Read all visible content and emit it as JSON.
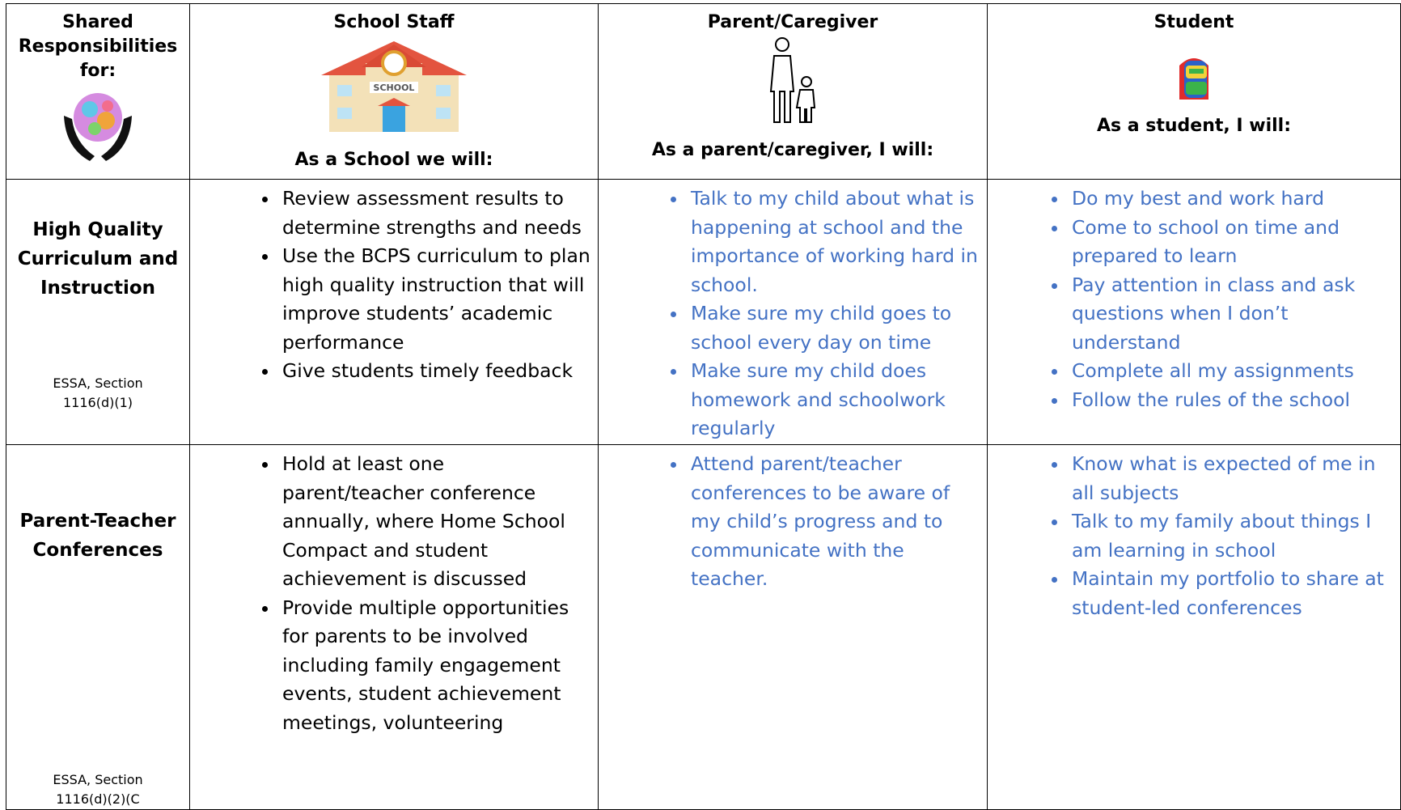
{
  "header": {
    "corner": "Shared Responsibilities for:",
    "columns": [
      {
        "title": "School Staff",
        "caption": "As a School we will:"
      },
      {
        "title": "Parent/Caregiver",
        "caption": "As a parent/caregiver, I will:"
      },
      {
        "title": "Student",
        "caption": "As a student, I will:"
      }
    ]
  },
  "rows": [
    {
      "label": "High Quality Curriculum and Instruction",
      "citation": "ESSA, Section 1116(d)(1)",
      "staff": [
        "Review assessment results to determine strengths and needs",
        "Use the BCPS curriculum to plan high quality instruction that will improve students’ academic performance",
        "Give students timely feedback"
      ],
      "parent": [
        "Talk to my child about what is happening at school and the importance of working hard in school.",
        "Make sure my child goes to school every day on time",
        "Make sure my child does homework and schoolwork regularly"
      ],
      "student": [
        "Do my best and work hard",
        "Come to school on time and prepared to learn",
        "Pay attention in class and ask questions when I don’t understand",
        "Complete all my assignments",
        "Follow the rules of the school"
      ]
    },
    {
      "label": "Parent-Teacher Conferences",
      "citation": "ESSA, Section 1116(d)(2)(C",
      "staff": [
        "Hold at least one parent/teacher conference annually, where Home School Compact and student achievement is discussed",
        "Provide multiple opportunities for parents to be involved including family engagement events, student achievement meetings, volunteering"
      ],
      "parent": [
        "Attend parent/teacher conferences to be aware of my child’s progress and to communicate with the teacher."
      ],
      "student": [
        "Know what is expected of me in all subjects",
        "Talk to my family about things I am learning in school",
        "Maintain my portfolio to share at student-led conferences"
      ]
    }
  ]
}
